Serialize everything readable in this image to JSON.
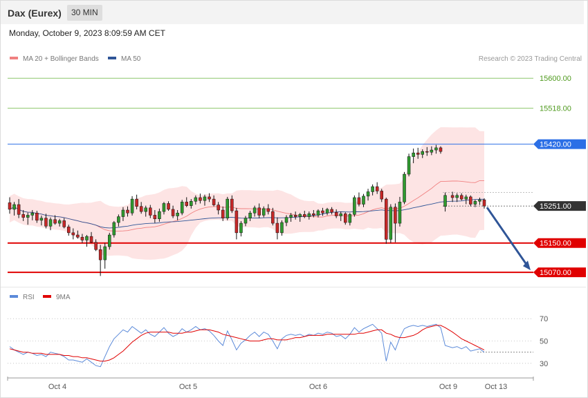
{
  "header": {
    "instrument": "Dax (Eurex)",
    "timeframe": "30 MIN"
  },
  "timestamp": "Monday, October 9, 2023 8:09:59 AM CET",
  "legend_main": [
    {
      "label": "MA 20 + Bollinger Bands",
      "color": "#f08080"
    },
    {
      "label": "MA 50",
      "color": "#2f5597"
    }
  ],
  "legend_rsi": [
    {
      "label": "RSI",
      "color": "#5b8ad9"
    },
    {
      "label": "9MA",
      "color": "#e00000"
    }
  ],
  "credit": "Research © 2023 Trading Central",
  "chart_data": [
    {
      "type": "candlestick",
      "title": "Dax (Eurex)",
      "ylim": [
        15040,
        15640
      ],
      "x_labels": [
        "Oct 4",
        "Oct 5",
        "Oct 6",
        "Oct 9",
        "Oct 13"
      ],
      "levels": [
        {
          "value": 15600.0,
          "label": "15600.00",
          "kind": "target",
          "color": "#8cc66a",
          "text_color": "#4f9a1e"
        },
        {
          "value": 15518.0,
          "label": "15518.00",
          "kind": "target",
          "color": "#8cc66a",
          "text_color": "#4f9a1e"
        },
        {
          "value": 15420.0,
          "label": "15420.00",
          "kind": "resistance",
          "color": "#2b6fe6",
          "text_color": "#ffffff"
        },
        {
          "value": 15251.0,
          "label": "15251.00",
          "kind": "last",
          "color": "#333333",
          "text_color": "#ffffff"
        },
        {
          "value": 15150.0,
          "label": "15150.00",
          "kind": "support",
          "color": "#e00000",
          "text_color": "#ffffff"
        },
        {
          "value": 15070.0,
          "label": "15070.00",
          "kind": "support",
          "color": "#e00000",
          "text_color": "#ffffff"
        }
      ],
      "ohlc": [
        [
          15260,
          15275,
          15230,
          15242
        ],
        [
          15242,
          15262,
          15225,
          15255
        ],
        [
          15255,
          15270,
          15218,
          15228
        ],
        [
          15228,
          15240,
          15210,
          15220
        ],
        [
          15220,
          15233,
          15200,
          15226
        ],
        [
          15226,
          15240,
          15212,
          15232
        ],
        [
          15232,
          15238,
          15205,
          15212
        ],
        [
          15212,
          15225,
          15198,
          15218
        ],
        [
          15218,
          15230,
          15190,
          15196
        ],
        [
          15196,
          15220,
          15185,
          15214
        ],
        [
          15214,
          15226,
          15200,
          15204
        ],
        [
          15204,
          15216,
          15195,
          15211
        ],
        [
          15211,
          15218,
          15190,
          15194
        ],
        [
          15194,
          15200,
          15170,
          15178
        ],
        [
          15178,
          15190,
          15160,
          15172
        ],
        [
          15172,
          15184,
          15162,
          15166
        ],
        [
          15166,
          15175,
          15150,
          15158
        ],
        [
          15158,
          15172,
          15140,
          15168
        ],
        [
          15168,
          15180,
          15150,
          15152
        ],
        [
          15152,
          15160,
          15128,
          15132
        ],
        [
          15132,
          15145,
          15060,
          15104
        ],
        [
          15104,
          15150,
          15080,
          15140
        ],
        [
          15140,
          15178,
          15132,
          15172
        ],
        [
          15172,
          15210,
          15165,
          15206
        ],
        [
          15206,
          15228,
          15195,
          15222
        ],
        [
          15222,
          15248,
          15210,
          15240
        ],
        [
          15240,
          15250,
          15222,
          15232
        ],
        [
          15232,
          15278,
          15225,
          15270
        ],
        [
          15270,
          15282,
          15242,
          15250
        ],
        [
          15250,
          15262,
          15230,
          15236
        ],
        [
          15236,
          15252,
          15222,
          15246
        ],
        [
          15246,
          15254,
          15218,
          15226
        ],
        [
          15226,
          15240,
          15205,
          15216
        ],
        [
          15216,
          15244,
          15208,
          15236
        ],
        [
          15236,
          15262,
          15228,
          15258
        ],
        [
          15258,
          15264,
          15238,
          15242
        ],
        [
          15242,
          15252,
          15218,
          15224
        ],
        [
          15224,
          15240,
          15212,
          15232
        ],
        [
          15232,
          15268,
          15226,
          15262
        ],
        [
          15262,
          15275,
          15248,
          15252
        ],
        [
          15252,
          15270,
          15244,
          15264
        ],
        [
          15264,
          15280,
          15255,
          15274
        ],
        [
          15274,
          15285,
          15258,
          15266
        ],
        [
          15266,
          15282,
          15252,
          15276
        ],
        [
          15276,
          15286,
          15262,
          15270
        ],
        [
          15270,
          15280,
          15250,
          15254
        ],
        [
          15254,
          15262,
          15228,
          15240
        ],
        [
          15240,
          15250,
          15210,
          15218
        ],
        [
          15218,
          15276,
          15212,
          15270
        ],
        [
          15270,
          15280,
          15232,
          15238
        ],
        [
          15238,
          15246,
          15160,
          15178
        ],
        [
          15178,
          15210,
          15168,
          15204
        ],
        [
          15204,
          15224,
          15196,
          15218
        ],
        [
          15218,
          15238,
          15210,
          15232
        ],
        [
          15232,
          15252,
          15222,
          15246
        ],
        [
          15246,
          15258,
          15218,
          15226
        ],
        [
          15226,
          15250,
          15220,
          15244
        ],
        [
          15244,
          15256,
          15228,
          15236
        ],
        [
          15236,
          15246,
          15198,
          15204
        ],
        [
          15204,
          15220,
          15160,
          15178
        ],
        [
          15178,
          15212,
          15170,
          15206
        ],
        [
          15206,
          15226,
          15196,
          15220
        ],
        [
          15220,
          15232,
          15208,
          15226
        ],
        [
          15226,
          15236,
          15214,
          15222
        ],
        [
          15222,
          15232,
          15208,
          15228
        ],
        [
          15228,
          15238,
          15218,
          15222
        ],
        [
          15222,
          15236,
          15214,
          15230
        ],
        [
          15230,
          15240,
          15220,
          15226
        ],
        [
          15226,
          15242,
          15220,
          15238
        ],
        [
          15238,
          15246,
          15224,
          15232
        ],
        [
          15232,
          15246,
          15226,
          15242
        ],
        [
          15242,
          15248,
          15228,
          15234
        ],
        [
          15234,
          15242,
          15218,
          15224
        ],
        [
          15224,
          15236,
          15210,
          15230
        ],
        [
          15230,
          15234,
          15200,
          15206
        ],
        [
          15206,
          15232,
          15198,
          15228
        ],
        [
          15228,
          15280,
          15222,
          15274
        ],
        [
          15274,
          15288,
          15250,
          15256
        ],
        [
          15256,
          15284,
          15248,
          15278
        ],
        [
          15278,
          15298,
          15266,
          15290
        ],
        [
          15290,
          15310,
          15280,
          15304
        ],
        [
          15304,
          15316,
          15284,
          15292
        ],
        [
          15292,
          15298,
          15262,
          15270
        ],
        [
          15270,
          15274,
          15148,
          15160
        ],
        [
          15160,
          15256,
          15150,
          15248
        ],
        [
          15248,
          15258,
          15152,
          15204
        ],
        [
          15204,
          15276,
          15195,
          15262
        ],
        [
          15262,
          15344,
          15256,
          15338
        ],
        [
          15338,
          15394,
          15332,
          15386
        ],
        [
          15386,
          15408,
          15368,
          15396
        ],
        [
          15396,
          15410,
          15380,
          15392
        ],
        [
          15392,
          15406,
          15382,
          15400
        ],
        [
          15400,
          15412,
          15388,
          15398
        ],
        [
          15398,
          15414,
          15390,
          15404
        ],
        [
          15404,
          15418,
          15394,
          15410
        ],
        [
          15410,
          15414,
          15394,
          15400
        ],
        [
          15250,
          15288,
          15236,
          15280
        ],
        [
          15280,
          15290,
          15262,
          15274
        ],
        [
          15274,
          15286,
          15262,
          15280
        ],
        [
          15280,
          15286,
          15266,
          15270
        ],
        [
          15270,
          15282,
          15256,
          15276
        ],
        [
          15276,
          15280,
          15250,
          15256
        ],
        [
          15256,
          15268,
          15248,
          15264
        ],
        [
          15264,
          15274,
          15254,
          15268
        ],
        [
          15268,
          15272,
          15244,
          15251
        ]
      ]
    },
    {
      "type": "line",
      "title": "RSI",
      "ylim": [
        20,
        80
      ],
      "y_ticks": [
        30,
        50,
        70
      ],
      "tick_labels": [
        "30",
        "50",
        "70"
      ],
      "series": [
        {
          "name": "RSI",
          "color": "#5b8ad9",
          "values": [
            45,
            42,
            40,
            38,
            40,
            39,
            37,
            38,
            36,
            40,
            39,
            38,
            36,
            33,
            33,
            32,
            31,
            34,
            31,
            28,
            27,
            36,
            45,
            52,
            56,
            60,
            58,
            63,
            60,
            57,
            60,
            56,
            54,
            58,
            62,
            57,
            54,
            56,
            61,
            58,
            60,
            63,
            60,
            61,
            59,
            55,
            50,
            46,
            59,
            51,
            42,
            48,
            51,
            55,
            58,
            54,
            58,
            56,
            50,
            43,
            52,
            55,
            56,
            55,
            56,
            54,
            56,
            55,
            57,
            56,
            58,
            57,
            54,
            55,
            52,
            56,
            62,
            58,
            61,
            63,
            65,
            61,
            57,
            32,
            49,
            42,
            53,
            61,
            63,
            64,
            63,
            64,
            63,
            64,
            65,
            62,
            46,
            44,
            45,
            43,
            45,
            41,
            42,
            43,
            40
          ]
        },
        {
          "name": "9MA",
          "color": "#e00000",
          "values": [
            43,
            42,
            41,
            40,
            40,
            39,
            39,
            39,
            38,
            38,
            38,
            38,
            37,
            37,
            36,
            36,
            35,
            35,
            34,
            33,
            32,
            32,
            33,
            35,
            38,
            41,
            45,
            49,
            52,
            55,
            57,
            58,
            58,
            58,
            58,
            58,
            57,
            57,
            57,
            58,
            58,
            59,
            60,
            60,
            60,
            59,
            58,
            56,
            55,
            54,
            53,
            52,
            51,
            50,
            50,
            50,
            51,
            52,
            52,
            51,
            51,
            51,
            52,
            53,
            53,
            54,
            55,
            55,
            55,
            55,
            56,
            56,
            56,
            56,
            56,
            56,
            56,
            57,
            57,
            58,
            59,
            60,
            60,
            57,
            56,
            54,
            53,
            53,
            54,
            55,
            57,
            60,
            62,
            63,
            64,
            64,
            62,
            58,
            55,
            52,
            50,
            48,
            46,
            44,
            42
          ]
        }
      ]
    }
  ]
}
